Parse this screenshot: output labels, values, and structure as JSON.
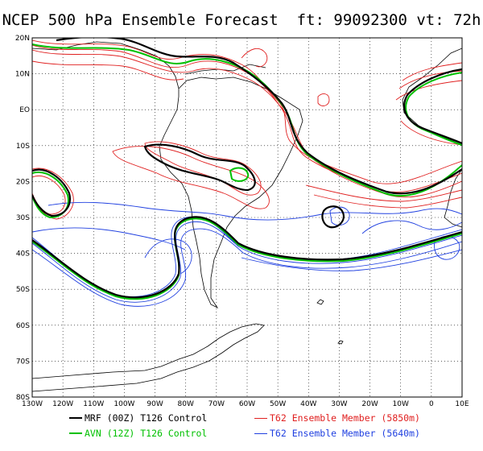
{
  "title": "NCEP 500 hPa Ensemble Forecast  ft: 99092300 vt: 72h",
  "lat_labels": [
    "20N",
    "10N",
    "EO",
    "10S",
    "20S",
    "30S",
    "40S",
    "50S",
    "60S",
    "70S",
    "80S"
  ],
  "lon_labels": [
    "130W",
    "120W",
    "110W",
    "100W",
    "90W",
    "80W",
    "70W",
    "60W",
    "50W",
    "40W",
    "30W",
    "20W",
    "10W",
    "0",
    "10E"
  ],
  "legend": [
    {
      "label": "MRF (00Z) T126 Control",
      "color": "#000000",
      "icon": "line-swatch-black"
    },
    {
      "label": "AVN (12Z) T126 Control",
      "color": "#00c000",
      "icon": "line-swatch-green"
    },
    {
      "label": "T62 Ensemble Member (5850m)",
      "color": "#e02020",
      "icon": "line-swatch-red"
    },
    {
      "label": "T62 Ensemble Member (5640m)",
      "color": "#2040e0",
      "icon": "line-swatch-blue"
    }
  ],
  "colors": {
    "mrf": "#000000",
    "avn": "#00c000",
    "red": "#e02020",
    "blue": "#2040e0",
    "grid": "#000000"
  }
}
